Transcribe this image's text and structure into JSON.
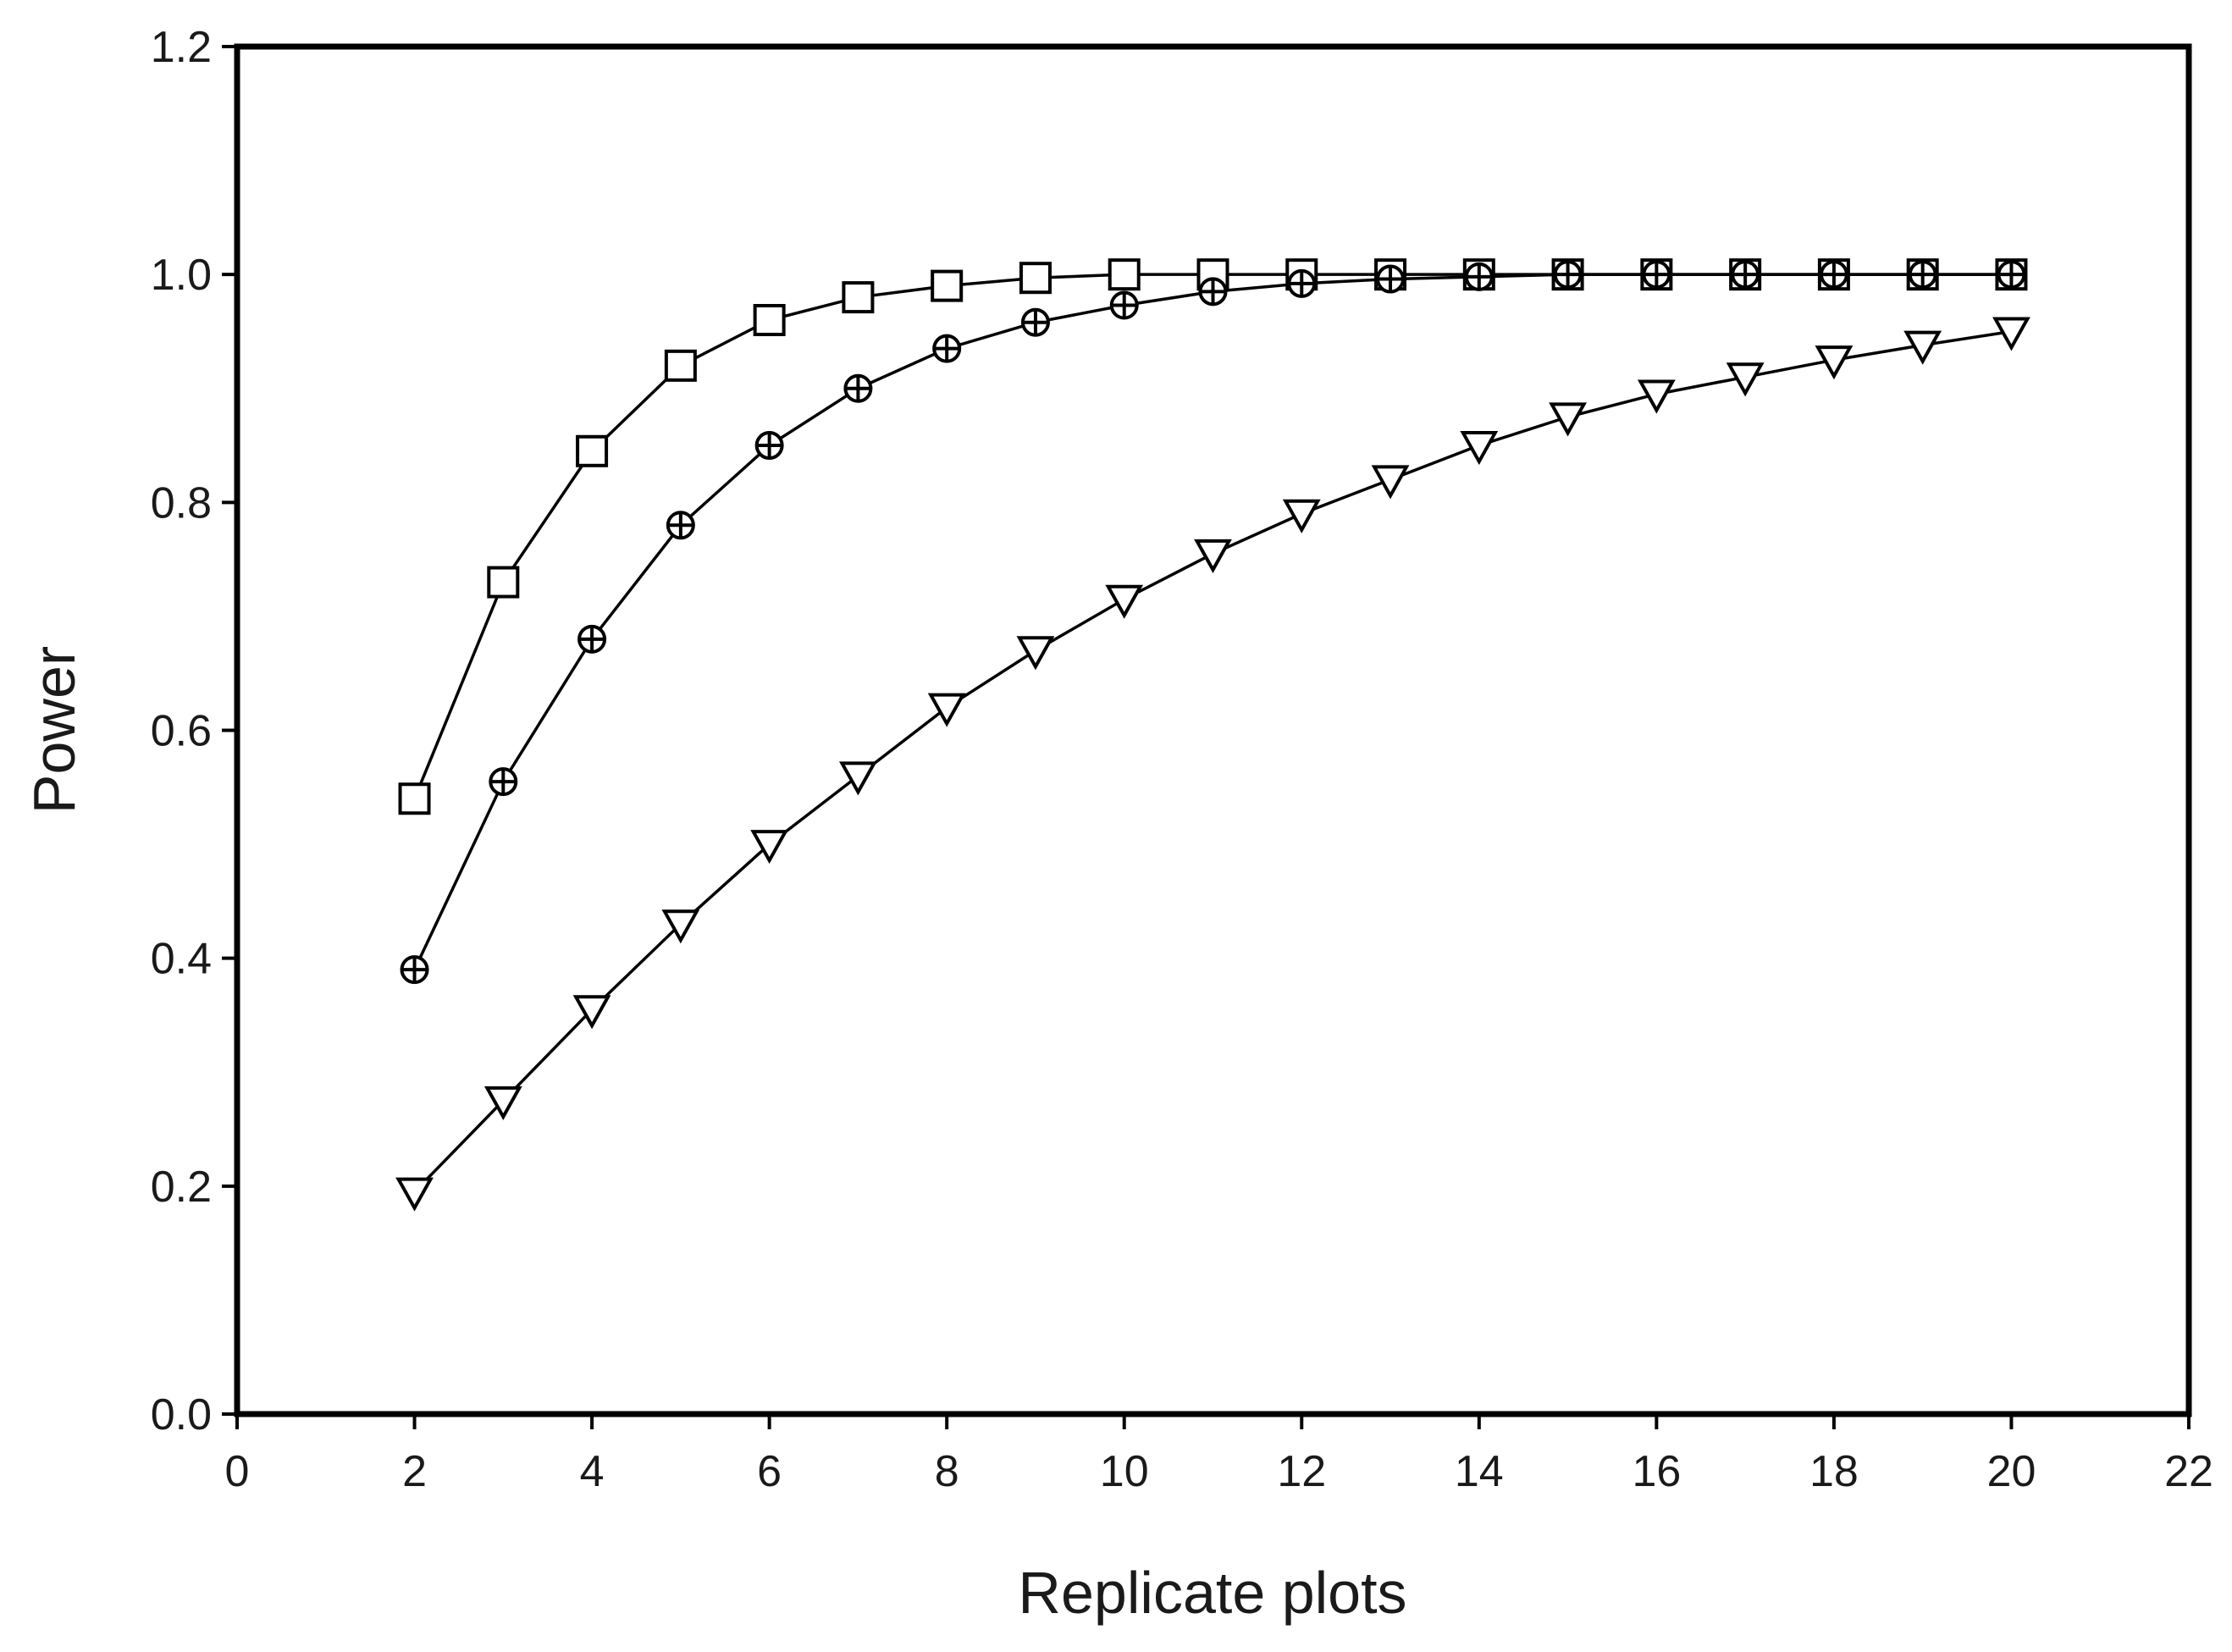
{
  "chart_data": {
    "type": "line",
    "title": "",
    "xlabel": "Replicate plots",
    "ylabel": "Power",
    "xlim": [
      0,
      22
    ],
    "ylim": [
      0,
      1.2
    ],
    "xticks": [
      0,
      2,
      4,
      6,
      8,
      10,
      12,
      14,
      16,
      18,
      20,
      22
    ],
    "xtick_labels": [
      "0",
      "2",
      "4",
      "6",
      "8",
      "10",
      "12",
      "14",
      "16",
      "18",
      "20",
      "22"
    ],
    "yticks": [
      0,
      0.2,
      0.4,
      0.6,
      0.8,
      1.0,
      1.2
    ],
    "ytick_labels": [
      "0.0",
      "0.2",
      "0.4",
      "0.6",
      "0.8",
      "1.0",
      "1.2"
    ],
    "grid": false,
    "legend": "none",
    "x": [
      2,
      3,
      4,
      5,
      6,
      7,
      8,
      9,
      10,
      11,
      12,
      13,
      14,
      15,
      16,
      17,
      18,
      19,
      20
    ],
    "series": [
      {
        "marker": "square",
        "values": [
          0.54,
          0.73,
          0.845,
          0.92,
          0.96,
          0.98,
          0.99,
          0.997,
          1.0,
          1.0,
          1.0,
          1.0,
          1.0,
          1.0,
          1.0,
          1.0,
          1.0,
          1.0,
          1.0
        ]
      },
      {
        "marker": "circle-cross",
        "values": [
          0.39,
          0.555,
          0.68,
          0.78,
          0.85,
          0.9,
          0.935,
          0.958,
          0.973,
          0.985,
          0.992,
          0.996,
          0.998,
          1.0,
          1.0,
          1.0,
          1.0,
          1.0,
          1.0
        ]
      },
      {
        "marker": "triangle-down",
        "values": [
          0.195,
          0.275,
          0.355,
          0.43,
          0.5,
          0.56,
          0.62,
          0.67,
          0.715,
          0.755,
          0.79,
          0.82,
          0.85,
          0.875,
          0.895,
          0.91,
          0.925,
          0.938,
          0.95
        ]
      }
    ]
  }
}
